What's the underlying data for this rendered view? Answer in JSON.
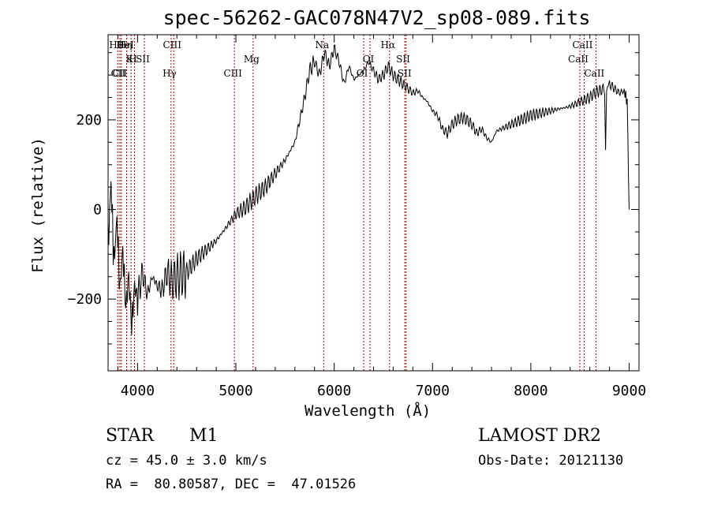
{
  "chart_data": {
    "type": "line",
    "title": "spec-56262-GAC078N47V2_sp08-089.fits",
    "xlabel": "Wavelength (Å)",
    "ylabel": "Flux (relative)",
    "xlim": [
      3700,
      9100
    ],
    "ylim": [
      -360,
      390
    ],
    "xticks": [
      4000,
      5000,
      6000,
      7000,
      8000,
      9000
    ],
    "yticks": [
      -200,
      0,
      200
    ],
    "grid": false,
    "line_color": "#000000",
    "marker_color": "#aa0000",
    "series": [
      {
        "x": [
          3700,
          3730,
          3760,
          3790,
          3820,
          3850,
          3880,
          3910,
          3940,
          3970,
          4000,
          4050,
          4100,
          4150,
          4200,
          4250,
          4300,
          4350,
          4400,
          4450,
          4500,
          4600,
          4700,
          4800,
          4900,
          5000,
          5100,
          5200,
          5300,
          5400,
          5500,
          5600,
          5650,
          5700,
          5750,
          5800,
          5850,
          5900,
          5950,
          6000,
          6050,
          6100,
          6150,
          6200,
          6250,
          6300,
          6350,
          6400,
          6450,
          6500,
          6550,
          6600,
          6650,
          6700,
          6750,
          6800,
          6850,
          6900,
          6950,
          7000,
          7050,
          7100,
          7150,
          7200,
          7250,
          7300,
          7350,
          7400,
          7450,
          7500,
          7550,
          7600,
          7650,
          7700,
          7800,
          7900,
          8000,
          8100,
          8200,
          8300,
          8400,
          8500,
          8550,
          8600,
          8650,
          8700,
          8750,
          8760,
          8770,
          8780,
          8800,
          8850,
          8900,
          8950,
          8980,
          9000
        ],
        "y": [
          -80,
          60,
          -120,
          -20,
          -180,
          -90,
          -220,
          -150,
          -260,
          -170,
          -200,
          -140,
          -190,
          -150,
          -170,
          -180,
          -140,
          -160,
          -150,
          -145,
          -140,
          -110,
          -90,
          -70,
          -40,
          -10,
          5,
          30,
          50,
          80,
          110,
          150,
          200,
          250,
          310,
          330,
          300,
          350,
          320,
          360,
          330,
          280,
          320,
          290,
          300,
          310,
          330,
          310,
          290,
          300,
          320,
          300,
          290,
          280,
          270,
          260,
          265,
          250,
          240,
          220,
          210,
          180,
          170,
          190,
          200,
          205,
          200,
          190,
          170,
          180,
          160,
          150,
          175,
          180,
          190,
          200,
          210,
          215,
          220,
          225,
          230,
          240,
          245,
          250,
          260,
          265,
          270,
          120,
          270,
          275,
          280,
          270,
          260,
          265,
          240,
          0
        ]
      }
    ],
    "lines": [
      {
        "label": "Hθ",
        "x": 3798
      },
      {
        "label": "K",
        "x": 3934
      },
      {
        "label": "CII",
        "x": 3820
      },
      {
        "label": "HeI",
        "x": 3889
      },
      {
        "label": "SII",
        "x": 4069
      },
      {
        "label": "CII",
        "x": 3835
      },
      {
        "label": "Hη",
        "x": 3890
      },
      {
        "label": "H",
        "x": 3969
      },
      {
        "label": "Hγ",
        "x": 4341
      },
      {
        "label": "CIII",
        "x": 4368
      },
      {
        "label": "Mg",
        "x": 5175
      },
      {
        "label": "CIII",
        "x": 4985
      },
      {
        "label": "Na",
        "x": 5893
      },
      {
        "label": "OI",
        "x": 6364
      },
      {
        "label": "OI",
        "x": 6300
      },
      {
        "label": "Hα",
        "x": 6563
      },
      {
        "label": "SII",
        "x": 6717
      },
      {
        "label": "SII",
        "x": 6731
      },
      {
        "label": "CaII",
        "x": 8542
      },
      {
        "label": "CaII",
        "x": 8498
      },
      {
        "label": "CaII",
        "x": 8662
      }
    ]
  },
  "info": {
    "object_type": "STAR",
    "subclass": "M1",
    "survey": "LAMOST DR2",
    "cz": "cz = 45.0 ± 3.0 km/s",
    "obs_date": "Obs-Date: 20121130",
    "coords": "RA =  80.80587, DEC =  47.01526"
  }
}
